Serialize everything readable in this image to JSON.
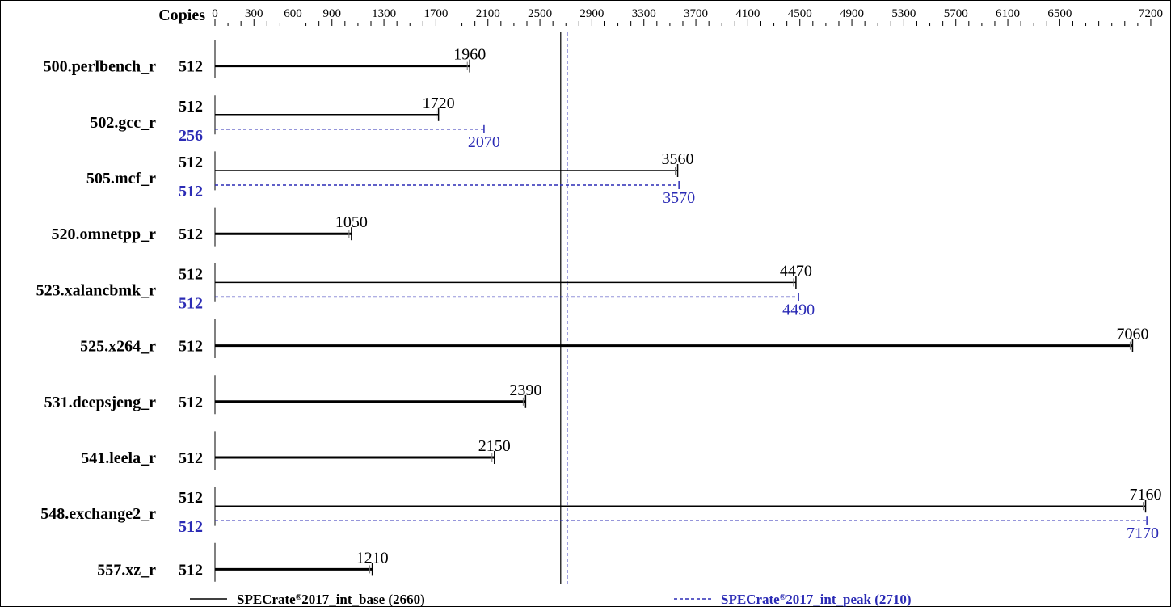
{
  "chart_data": {
    "type": "bar",
    "orientation": "horizontal",
    "copies_header": "Copies",
    "xlim": [
      0,
      7250
    ],
    "ticks": [
      0,
      300,
      600,
      900,
      1300,
      1700,
      2100,
      2500,
      2900,
      3300,
      3700,
      4100,
      4500,
      4900,
      5300,
      5700,
      6100,
      6500,
      7200
    ],
    "minor_tick_step": 100,
    "categories": [
      "500.perlbench_r",
      "502.gcc_r",
      "505.mcf_r",
      "520.omnetpp_r",
      "523.xalancbmk_r",
      "525.x264_r",
      "531.deepsjeng_r",
      "541.leela_r",
      "548.exchange2_r",
      "557.xz_r"
    ],
    "series": [
      {
        "name": "SPECrate®2017_int_base (2660)",
        "color": "#000000",
        "style": "solid",
        "copies": [
          "512",
          "512",
          "512",
          "512",
          "512",
          "512",
          "512",
          "512",
          "512",
          "512"
        ],
        "values": [
          1960,
          1720,
          3560,
          1050,
          4470,
          7060,
          2390,
          2150,
          7160,
          1210
        ],
        "labels": [
          "1960",
          "1720",
          "3560",
          "1050",
          "4470",
          "7060",
          "2390",
          "2150",
          "7160",
          "1210"
        ]
      },
      {
        "name": "SPECrate®2017_int_peak (2710)",
        "color": "#2b2bb5",
        "style": "dashed",
        "copies": [
          null,
          "256",
          "512",
          null,
          "512",
          null,
          null,
          null,
          "512",
          null
        ],
        "values": [
          null,
          2070,
          3570,
          null,
          4490,
          null,
          null,
          null,
          7170,
          null
        ],
        "labels": [
          null,
          "2070",
          "3570",
          null,
          "4490",
          null,
          null,
          null,
          "7170",
          null
        ]
      }
    ],
    "reference_lines": [
      {
        "series": "base",
        "value": 2660,
        "color": "#000000",
        "style": "solid"
      },
      {
        "series": "peak",
        "value": 2710,
        "color": "#2b2bb5",
        "style": "dashed"
      }
    ],
    "legend": {
      "placement": "bottom",
      "base": {
        "prefix": "SPECrate",
        "reg": "®",
        "suffix": "2017_int_base (2660)"
      },
      "peak": {
        "prefix": "SPECrate",
        "reg": "®",
        "suffix": "2017_int_peak (2710)"
      }
    }
  }
}
